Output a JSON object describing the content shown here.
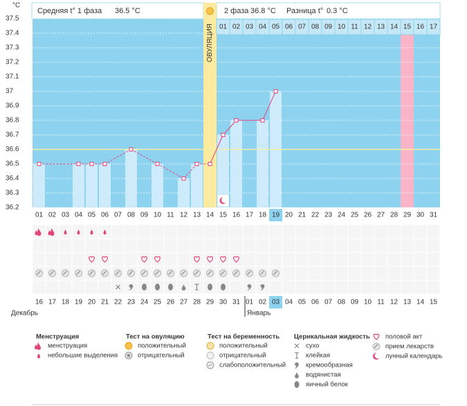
{
  "header": {
    "phase1_label": "Средняя t° 1 фаза",
    "phase1_value": "36.5 °C",
    "phase2_label": "2 фаза",
    "phase2_value": "36.8 °C",
    "diff_label": "Разница t°",
    "diff_value": "0.3 °C"
  },
  "chart_data": {
    "type": "line",
    "y_unit": "°C",
    "ylim": [
      36.2,
      37.5
    ],
    "yticks": [
      36.2,
      36.3,
      36.4,
      36.5,
      36.6,
      36.7,
      36.8,
      36.9,
      37,
      37.1,
      37.2,
      37.3,
      37.4,
      37.5
    ],
    "cycle_days": [
      "01",
      "02",
      "03",
      "04",
      "05",
      "06",
      "07",
      "08",
      "09",
      "10",
      "11",
      "12",
      "13",
      "14",
      "15",
      "16",
      "17",
      "18",
      "19",
      "20",
      "21",
      "22",
      "23",
      "24",
      "25",
      "26",
      "27",
      "28",
      "29",
      "30",
      "31"
    ],
    "phase2_days": [
      "01",
      "02",
      "03",
      "04",
      "05",
      "06",
      "07",
      "08",
      "09",
      "10",
      "11",
      "12",
      "13",
      "14",
      "15",
      "16",
      "17"
    ],
    "values": [
      36.5,
      null,
      null,
      36.5,
      36.5,
      36.5,
      null,
      36.6,
      null,
      36.5,
      null,
      36.4,
      36.5,
      36.5,
      36.7,
      36.8,
      null,
      36.8,
      37.0,
      null,
      null,
      null,
      null,
      null,
      null,
      null,
      null,
      null,
      null,
      null,
      null
    ],
    "line_color": "#e0457b",
    "bar_color": "#cdebfb",
    "background": "#8dd3f0",
    "ovulation_day": 14,
    "ovulation_label": "ОВУЛЯЦИЯ",
    "coverline": 36.6,
    "highlight_day": 29,
    "today_day": 19,
    "dates": [
      {
        "text": "16",
        "red": false
      },
      {
        "text": "17",
        "red": true
      },
      {
        "text": "18",
        "red": true
      },
      {
        "text": "19",
        "red": false
      },
      {
        "text": "20",
        "red": false
      },
      {
        "text": "21",
        "red": false
      },
      {
        "text": "22",
        "red": false
      },
      {
        "text": "23",
        "red": false
      },
      {
        "text": "24",
        "red": true
      },
      {
        "text": "25",
        "red": true
      },
      {
        "text": "26",
        "red": false
      },
      {
        "text": "27",
        "red": false
      },
      {
        "text": "28",
        "red": false
      },
      {
        "text": "29",
        "red": false
      },
      {
        "text": "30",
        "red": false
      },
      {
        "text": "31",
        "red": true
      },
      {
        "text": "01",
        "red": false
      },
      {
        "text": "02",
        "red": false
      },
      {
        "text": "03",
        "red": false
      },
      {
        "text": "04",
        "red": false
      },
      {
        "text": "05",
        "red": false
      },
      {
        "text": "06",
        "red": false
      },
      {
        "text": "07",
        "red": true
      },
      {
        "text": "08",
        "red": true
      },
      {
        "text": "09",
        "red": false
      },
      {
        "text": "10",
        "red": false
      },
      {
        "text": "11",
        "red": false
      },
      {
        "text": "12",
        "red": false
      },
      {
        "text": "13",
        "red": false
      },
      {
        "text": "14",
        "red": true
      },
      {
        "text": "15",
        "red": true
      }
    ],
    "months": [
      {
        "label": "Декабрь",
        "start_day": 1
      },
      {
        "label": "Январь",
        "start_day": 17
      }
    ]
  },
  "legend": [
    {
      "title": "Менструация",
      "items": [
        {
          "label": "менструация",
          "days": [
            1,
            2
          ]
        },
        {
          "label": "небольшие выделения",
          "days": [
            3,
            4,
            5,
            6
          ]
        }
      ]
    },
    {
      "title": "Тест на овуляцию",
      "items": [
        {
          "label": "положительный"
        },
        {
          "label": "отрицательный"
        }
      ]
    },
    {
      "title": "Тест на беременность",
      "items": [
        {
          "label": "положительный"
        },
        {
          "label": "отрицательный"
        },
        {
          "label": "слабоположительный"
        }
      ]
    },
    {
      "title": "Церикальная жидкость",
      "items": [
        {
          "label": "сухо",
          "days": [
            7
          ]
        },
        {
          "label": "клейкая",
          "days": [
            13
          ]
        },
        {
          "label": "кремообразная",
          "days": [
            8,
            17,
            18
          ]
        },
        {
          "label": "водянистая",
          "days": [
            12
          ]
        },
        {
          "label": "яичный белок",
          "days": [
            9,
            10,
            11,
            14,
            15
          ]
        }
      ]
    },
    {
      "items": [
        {
          "label": "половой акт",
          "days": [
            5,
            6,
            9,
            10,
            13,
            14,
            15,
            16
          ]
        },
        {
          "label": "прием лекарств",
          "days": [
            1,
            2,
            3,
            4,
            5,
            6,
            7,
            8,
            9,
            10,
            11,
            12,
            13,
            14,
            15,
            16,
            17,
            18,
            19
          ]
        },
        {
          "label": "лунный календарь",
          "days": [
            15
          ]
        }
      ]
    }
  ]
}
